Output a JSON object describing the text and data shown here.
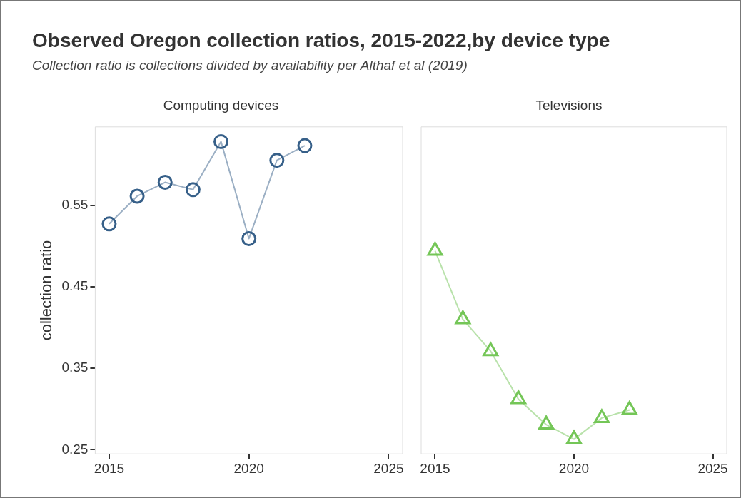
{
  "chart_data": [
    {
      "type": "other",
      "title": "Observed Oregon collection ratios, 2015-2022,by device type",
      "subtitle": "Collection ratio is collections divided by availability per Althaf et al (2019)"
    },
    {
      "type": "line",
      "title": "Computing devices",
      "ylabel": "collection ratio",
      "marker": "circle",
      "legend": false,
      "grid": false,
      "xlim": [
        2014.5,
        2025.5
      ],
      "xticks": [
        2015,
        2020,
        2025
      ],
      "ylim": [
        0.245,
        0.646
      ],
      "yticks": [
        0.25,
        0.35,
        0.45,
        0.55
      ],
      "x": [
        2015,
        2016,
        2017,
        2018,
        2019,
        2020,
        2021,
        2022
      ],
      "series": [
        {
          "color": "#376089",
          "values": [
            0.527,
            0.561,
            0.578,
            0.569,
            0.628,
            0.509,
            0.605,
            0.623
          ]
        }
      ]
    },
    {
      "type": "line",
      "title": "Televisions",
      "marker": "triangle",
      "legend": false,
      "grid": false,
      "tick_labels": "x",
      "xlim": [
        2014.5,
        2025.5
      ],
      "xticks": [
        2015,
        2020,
        2025
      ],
      "ylim": [
        0.245,
        0.646
      ],
      "yticks": [
        0.25,
        0.35,
        0.45,
        0.55
      ],
      "x": [
        2015,
        2016,
        2017,
        2018,
        2019,
        2020,
        2021,
        2022
      ],
      "series": [
        {
          "color": "#74c657",
          "values": [
            0.494,
            0.41,
            0.371,
            0.312,
            0.281,
            0.263,
            0.289,
            0.299
          ]
        }
      ]
    }
  ]
}
